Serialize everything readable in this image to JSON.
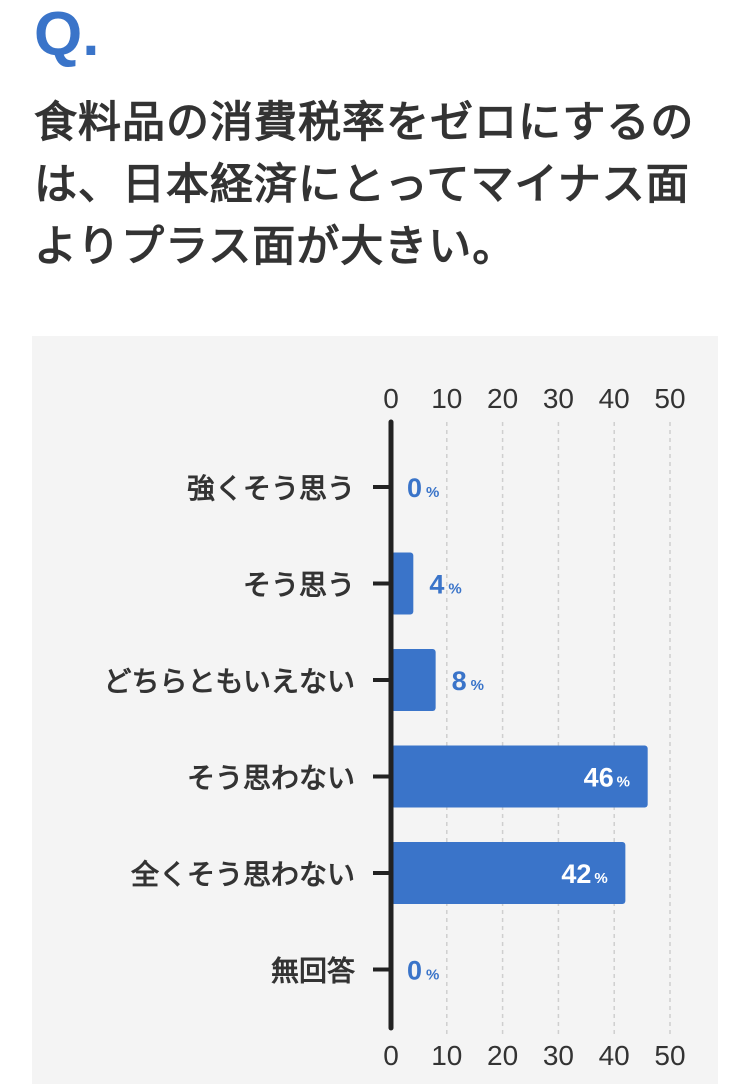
{
  "q_mark": "Q.",
  "question": "食料品の消費税率をゼロにするのは、日本経済にとってマイナス面よりプラス面が大きい。",
  "colors": {
    "bar": "#3a74c9",
    "label_blue": "#3a74c9",
    "text": "#333333",
    "panel": "#f4f4f4",
    "grid": "#cfcfcf"
  },
  "chart_data": {
    "type": "bar",
    "orientation": "horizontal",
    "categories": [
      "強くそう思う",
      "そう思う",
      "どちらともいえない",
      "そう思わない",
      "全くそう思わない",
      "無回答"
    ],
    "values": [
      0,
      4,
      8,
      46,
      42,
      0
    ],
    "unit": "%",
    "xlim": [
      0,
      50
    ],
    "xticks": [
      0,
      10,
      20,
      30,
      40,
      50
    ],
    "grid": "vertical dashed",
    "title": "",
    "xlabel": "",
    "ylabel": ""
  }
}
